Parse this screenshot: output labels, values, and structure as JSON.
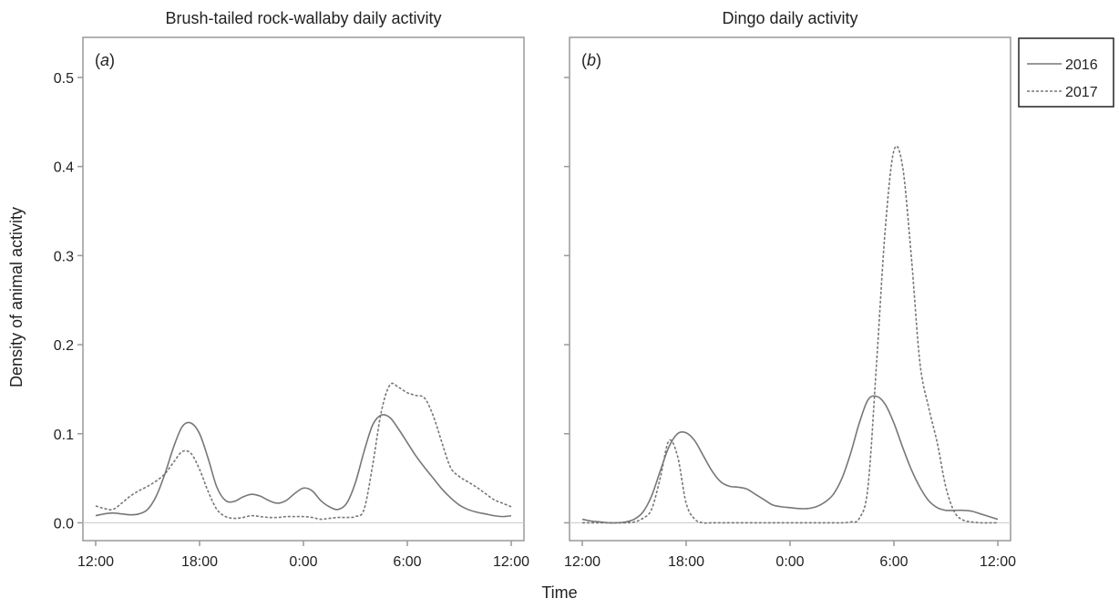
{
  "figure": {
    "ylabel": "Density of animal activity",
    "xlabel": "Time"
  },
  "legend": {
    "placement": "top-right, outside plot area",
    "entries": [
      {
        "label": "2016",
        "style": "solid"
      },
      {
        "label": "2017",
        "style": "dashed"
      }
    ]
  },
  "colors": {
    "line": "#777777",
    "frame": "#999999",
    "zero_line": "#cccccc",
    "text": "#222222"
  },
  "chart_data": [
    {
      "type": "line",
      "title": "Brush-tailed rock-wallaby daily activity",
      "panel_label": "a",
      "x_ticks": [
        "12:00",
        "18:00",
        "0:00",
        "6:00",
        "12:00"
      ],
      "y_ticks": [
        "0.0",
        "0.1",
        "0.2",
        "0.3",
        "0.4",
        "0.5"
      ],
      "xlim": [
        12,
        36
      ],
      "ylim": [
        -0.02,
        0.545
      ],
      "grid": false,
      "series": [
        {
          "name": "2016",
          "x": [
            12,
            12.5,
            13,
            13.5,
            14,
            14.5,
            15,
            15.5,
            16,
            16.5,
            17,
            17.5,
            18,
            18.5,
            19,
            19.5,
            20,
            20.5,
            21,
            21.5,
            22,
            22.5,
            23,
            23.5,
            24,
            24.5,
            25,
            25.5,
            26,
            26.5,
            27,
            27.5,
            28,
            28.5,
            29,
            29.5,
            30,
            30.5,
            31,
            31.5,
            32,
            32.5,
            33,
            33.5,
            34,
            34.5,
            35,
            35.5,
            36
          ],
          "y": [
            0.008,
            0.01,
            0.011,
            0.01,
            0.009,
            0.01,
            0.015,
            0.03,
            0.055,
            0.085,
            0.108,
            0.112,
            0.1,
            0.072,
            0.04,
            0.025,
            0.024,
            0.029,
            0.032,
            0.03,
            0.025,
            0.022,
            0.025,
            0.033,
            0.039,
            0.036,
            0.025,
            0.018,
            0.015,
            0.022,
            0.045,
            0.08,
            0.11,
            0.121,
            0.118,
            0.105,
            0.09,
            0.075,
            0.062,
            0.05,
            0.038,
            0.028,
            0.02,
            0.015,
            0.012,
            0.01,
            0.008,
            0.007,
            0.008
          ]
        },
        {
          "name": "2017",
          "x": [
            12,
            12.5,
            13,
            13.5,
            14,
            14.5,
            15,
            15.5,
            16,
            16.5,
            17,
            17.5,
            18,
            18.5,
            19,
            19.5,
            20,
            20.5,
            21,
            21.5,
            22,
            22.5,
            23,
            23.5,
            24,
            24.5,
            25,
            25.5,
            26,
            26.5,
            27,
            27.5,
            28,
            28.5,
            29,
            29.5,
            30,
            30.5,
            31,
            31.5,
            32,
            32.5,
            33,
            33.5,
            34,
            34.5,
            35,
            35.5,
            36
          ],
          "y": [
            0.019,
            0.016,
            0.015,
            0.022,
            0.03,
            0.036,
            0.041,
            0.047,
            0.055,
            0.068,
            0.08,
            0.078,
            0.06,
            0.035,
            0.015,
            0.007,
            0.005,
            0.006,
            0.008,
            0.007,
            0.006,
            0.006,
            0.007,
            0.007,
            0.007,
            0.006,
            0.004,
            0.005,
            0.006,
            0.006,
            0.007,
            0.015,
            0.065,
            0.125,
            0.155,
            0.152,
            0.146,
            0.143,
            0.14,
            0.12,
            0.09,
            0.062,
            0.052,
            0.046,
            0.04,
            0.033,
            0.026,
            0.022,
            0.018
          ]
        }
      ]
    },
    {
      "type": "line",
      "title": "Dingo daily activity",
      "panel_label": "b",
      "x_ticks": [
        "12:00",
        "18:00",
        "0:00",
        "6:00",
        "12:00"
      ],
      "y_ticks": [
        "0.0",
        "0.1",
        "0.2",
        "0.3",
        "0.4",
        "0.5"
      ],
      "xlim": [
        12,
        36
      ],
      "ylim": [
        -0.02,
        0.545
      ],
      "grid": false,
      "series": [
        {
          "name": "2016",
          "x": [
            12,
            12.5,
            13,
            13.5,
            14,
            14.5,
            15,
            15.5,
            16,
            16.5,
            17,
            17.5,
            18,
            18.5,
            19,
            19.5,
            20,
            20.5,
            21,
            21.5,
            22,
            22.5,
            23,
            23.5,
            24,
            24.5,
            25,
            25.5,
            26,
            26.5,
            27,
            27.5,
            28,
            28.5,
            29,
            29.5,
            30,
            30.5,
            31,
            31.5,
            32,
            32.5,
            33,
            33.5,
            34,
            34.5,
            35,
            35.5,
            36
          ],
          "y": [
            0.004,
            0.002,
            0.001,
            0.0,
            0.0,
            0.001,
            0.004,
            0.012,
            0.03,
            0.058,
            0.085,
            0.1,
            0.101,
            0.092,
            0.075,
            0.058,
            0.046,
            0.041,
            0.04,
            0.038,
            0.032,
            0.026,
            0.02,
            0.018,
            0.017,
            0.016,
            0.016,
            0.018,
            0.023,
            0.032,
            0.05,
            0.078,
            0.112,
            0.138,
            0.142,
            0.133,
            0.112,
            0.085,
            0.06,
            0.04,
            0.025,
            0.017,
            0.014,
            0.014,
            0.014,
            0.013,
            0.01,
            0.007,
            0.004
          ]
        },
        {
          "name": "2017",
          "x": [
            12,
            12.5,
            13,
            13.5,
            14,
            14.5,
            15,
            15.5,
            16,
            16.5,
            17,
            17.5,
            18,
            18.5,
            19,
            19.5,
            20,
            20.5,
            21,
            21.5,
            22,
            22.5,
            23,
            23.5,
            24,
            24.5,
            25,
            25.5,
            26,
            26.5,
            27,
            27.5,
            28,
            28.5,
            29,
            29.5,
            30,
            30.5,
            31,
            31.5,
            32,
            32.5,
            33,
            33.5,
            34,
            34.5,
            35,
            35.5,
            36
          ],
          "y": [
            0.0,
            0.0,
            0.0,
            0.0,
            0.0,
            0.0,
            0.001,
            0.005,
            0.015,
            0.05,
            0.092,
            0.075,
            0.022,
            0.004,
            0.0,
            0.0,
            0.0,
            0.0,
            0.0,
            0.0,
            0.0,
            0.0,
            0.0,
            0.0,
            0.0,
            0.0,
            0.0,
            0.0,
            0.0,
            0.0,
            0.0,
            0.001,
            0.005,
            0.04,
            0.18,
            0.33,
            0.418,
            0.4,
            0.3,
            0.18,
            0.13,
            0.09,
            0.04,
            0.012,
            0.003,
            0.001,
            0.0,
            0.0,
            0.0
          ]
        }
      ]
    }
  ]
}
